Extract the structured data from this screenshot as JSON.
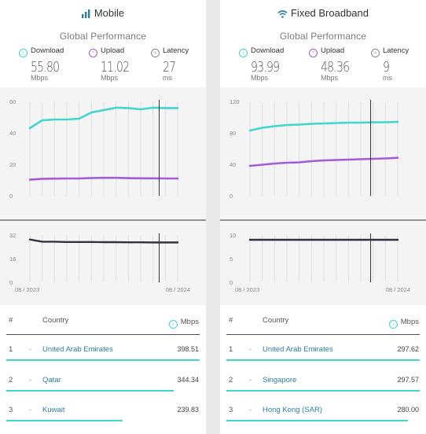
{
  "colors": {
    "download": "#3fd6cf",
    "upload": "#a35bd9",
    "latency": "#2f3140",
    "link": "#2a7fa4",
    "marker": "#333333"
  },
  "mobile": {
    "title": "Mobile",
    "title_icon": "signal-bars-icon",
    "subtitle": "Global Performance",
    "metrics": [
      {
        "label": "Download",
        "icon": "download-icon",
        "value": "55.80",
        "unit": "Mbps"
      },
      {
        "label": "Upload",
        "icon": "upload-icon",
        "value": "11.02",
        "unit": "Mbps"
      },
      {
        "label": "Latency",
        "icon": "latency-icon",
        "value": "27",
        "unit": "ms"
      }
    ],
    "table": {
      "headers": {
        "rank": "#",
        "country": "Country",
        "value": "Mbps"
      },
      "rows": [
        {
          "rank": "1",
          "dash": "-",
          "country": "United Arab Emirates",
          "value": "398.51",
          "fraction": 1.0
        },
        {
          "rank": "2",
          "dash": "-",
          "country": "Qatar",
          "value": "344.34",
          "fraction": 0.864
        },
        {
          "rank": "3",
          "dash": "-",
          "country": "Kuwait",
          "value": "239.83",
          "fraction": 0.602
        }
      ]
    }
  },
  "fixed": {
    "title": "Fixed Broadband",
    "title_icon": "wifi-icon",
    "subtitle": "Global Performance",
    "metrics": [
      {
        "label": "Download",
        "icon": "download-icon",
        "value": "93.99",
        "unit": "Mbps"
      },
      {
        "label": "Upload",
        "icon": "upload-icon",
        "value": "48.36",
        "unit": "Mbps"
      },
      {
        "label": "Latency",
        "icon": "latency-icon",
        "value": "9",
        "unit": "ms"
      }
    ],
    "table": {
      "headers": {
        "rank": "#",
        "country": "Country",
        "value": "Mbps"
      },
      "rows": [
        {
          "rank": "1",
          "dash": "-",
          "country": "United Arab Emirates",
          "value": "297.62",
          "fraction": 1.0
        },
        {
          "rank": "2",
          "dash": "-",
          "country": "Singapore",
          "value": "297.57",
          "fraction": 0.9998
        },
        {
          "rank": "3",
          "dash": "-",
          "country": "Hong Kong (SAR)",
          "value": "280.00",
          "fraction": 0.941
        }
      ]
    }
  },
  "chart_data": [
    {
      "type": "line",
      "panel": "mobile",
      "x_start_label": "08 / 2023",
      "x_end_label": "08 / 2024",
      "speed": {
        "ylim": [
          0,
          60
        ],
        "yticks": [
          0,
          20,
          40,
          60
        ],
        "series": [
          {
            "key": "download",
            "values": [
              43,
              48,
              48.5,
              48.5,
              49,
              53,
              54.5,
              56,
              55.8,
              55,
              56,
              55.8,
              55.8
            ]
          },
          {
            "key": "upload",
            "values": [
              10.2,
              10.8,
              10.9,
              11,
              11,
              11.3,
              11.4,
              11.4,
              11.2,
              11.1,
              11.1,
              11,
              11
            ]
          }
        ]
      },
      "latency": {
        "ylim": [
          0,
          32
        ],
        "yticks": [
          0,
          16,
          32
        ],
        "series": [
          {
            "key": "latency",
            "values": [
              29,
              27.5,
              27.5,
              27.3,
              27.3,
              27.3,
              27.2,
              27.2,
              27.1,
              27.1,
              27,
              27,
              27
            ]
          }
        ]
      },
      "marker_index": 10.5
    },
    {
      "type": "line",
      "panel": "fixed",
      "x_start_label": "08 / 2023",
      "x_end_label": "08 / 2024",
      "speed": {
        "ylim": [
          0,
          120
        ],
        "yticks": [
          0,
          40,
          80,
          120
        ],
        "series": [
          {
            "key": "download",
            "values": [
              83,
              86.5,
              88.5,
              90,
              90.5,
              91.5,
              92,
              92.5,
              93,
              93,
              93.5,
              93.5,
              93.9
            ]
          },
          {
            "key": "upload",
            "values": [
              38,
              39.5,
              41,
              42,
              42.5,
              44,
              45,
              45.5,
              46,
              46.5,
              47,
              47.5,
              48.3
            ]
          }
        ]
      },
      "latency": {
        "ylim": [
          0,
          10
        ],
        "yticks": [
          0,
          5,
          10
        ],
        "series": [
          {
            "key": "latency",
            "values": [
              9,
              9,
              9,
              9,
              9,
              9,
              9,
              9,
              9,
              9,
              9,
              9,
              9
            ]
          }
        ]
      },
      "marker_index": 9.8
    }
  ]
}
